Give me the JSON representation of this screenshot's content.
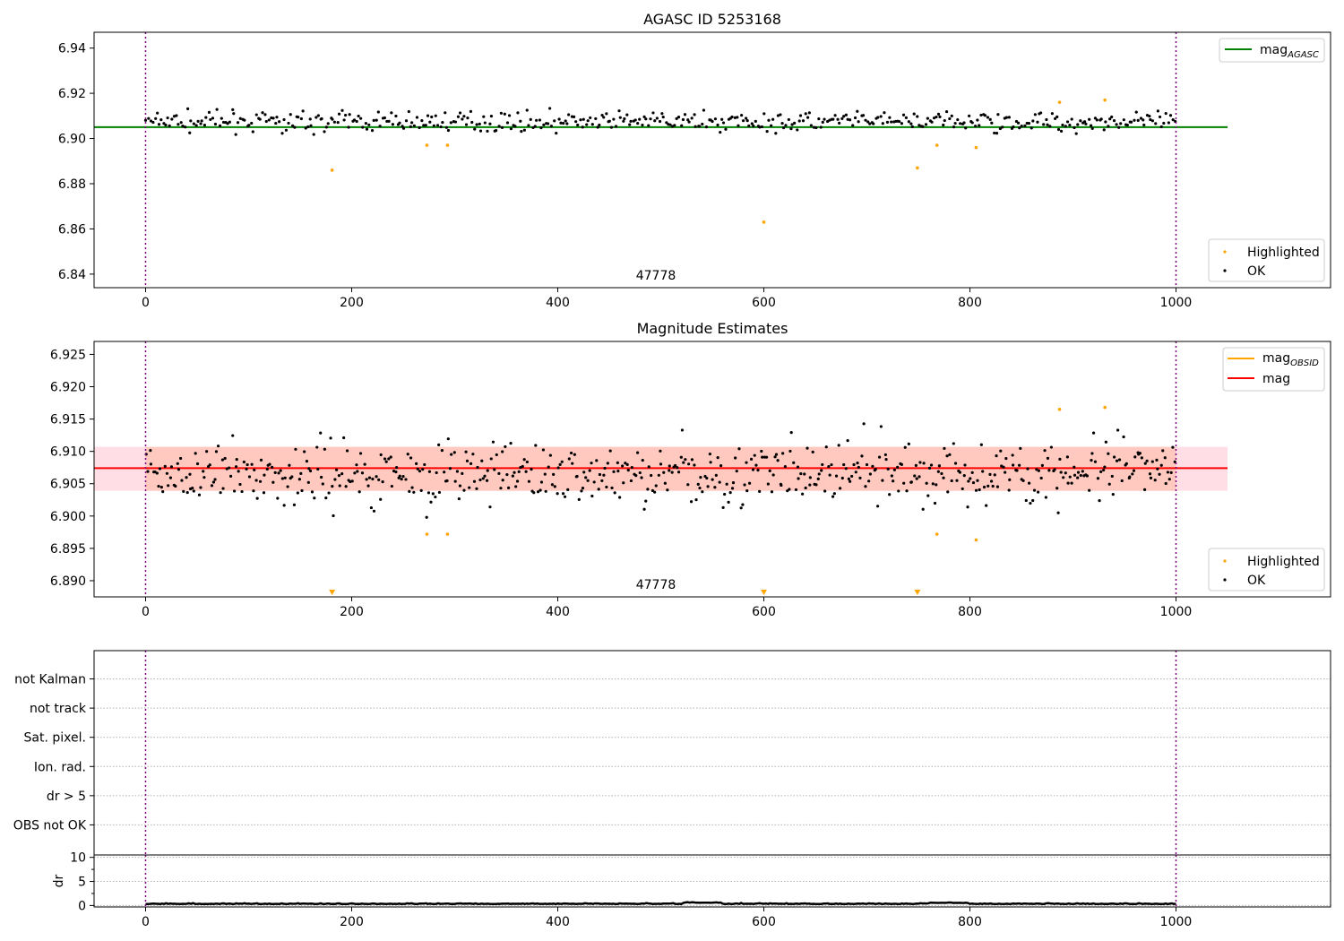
{
  "chart_data": [
    {
      "type": "scatter",
      "title": "AGASC ID 5253168",
      "xlim": [
        -50,
        1150
      ],
      "ylim": [
        6.834,
        6.947
      ],
      "xticks": [
        0,
        200,
        400,
        600,
        800,
        1000
      ],
      "xtick_labels": [
        "0",
        "200",
        "400",
        "600",
        "800",
        "1000"
      ],
      "yticks": [
        6.84,
        6.86,
        6.88,
        6.9,
        6.92,
        6.94
      ],
      "ytick_labels": [
        "6.84",
        "6.86",
        "6.88",
        "6.90",
        "6.92",
        "6.94"
      ],
      "obsid_bounds": [
        0,
        1000
      ],
      "obsid_label": "47778",
      "line": {
        "name": "mag",
        "sub": "AGASC",
        "y": 6.905,
        "x": [
          -50,
          1050
        ],
        "color": "#008000"
      },
      "series_ok": {
        "name": "OK",
        "color": "#000000",
        "center": 6.9075,
        "spread": 0.003,
        "count": 480
      },
      "series_highlighted": {
        "name": "Highlighted",
        "color": "#ffa500",
        "x": [
          181,
          273,
          293,
          600,
          749,
          768,
          806,
          887,
          931
        ],
        "y": [
          6.886,
          6.897,
          6.897,
          6.863,
          6.887,
          6.897,
          6.896,
          6.916,
          6.917
        ]
      },
      "legend": "upper-right / lower-right"
    },
    {
      "type": "scatter",
      "title": "Magnitude Estimates",
      "xlim": [
        -50,
        1150
      ],
      "ylim": [
        6.8875,
        6.927
      ],
      "xticks": [
        0,
        200,
        400,
        600,
        800,
        1000
      ],
      "xtick_labels": [
        "0",
        "200",
        "400",
        "600",
        "800",
        "1000"
      ],
      "yticks": [
        6.89,
        6.895,
        6.9,
        6.905,
        6.91,
        6.915,
        6.92,
        6.925
      ],
      "ytick_labels": [
        "6.890",
        "6.895",
        "6.900",
        "6.905",
        "6.910",
        "6.915",
        "6.920",
        "6.925"
      ],
      "obsid_bounds": [
        0,
        1000
      ],
      "obsid_label": "47778",
      "line_obsid": {
        "name": "mag",
        "sub": "OBSID",
        "color": "#ffa500"
      },
      "line_mag": {
        "name": "mag",
        "y": 6.9074,
        "x": [
          -50,
          1050
        ],
        "color": "#ff0000"
      },
      "band_mag": {
        "y1": 6.9039,
        "y2": 6.9107,
        "x": [
          -50,
          1050
        ],
        "color": "#ffc0cb"
      },
      "band_obsid": {
        "y1": 6.9039,
        "y2": 6.9107,
        "x": [
          0,
          1000
        ],
        "color": "#ffa07a"
      },
      "series_ok": {
        "name": "OK",
        "color": "#000000",
        "center": 6.9065,
        "spread": 0.0035,
        "count": 600
      },
      "series_highlighted": {
        "name": "Highlighted",
        "color": "#ffa500",
        "x": [
          273,
          293,
          768,
          806,
          887,
          931
        ],
        "y": [
          6.8972,
          6.8972,
          6.8972,
          6.8963,
          6.9165,
          6.9168
        ]
      },
      "offscale_markers": {
        "x": [
          181,
          600,
          749
        ],
        "color": "#ffa500"
      },
      "legend": "upper-right / lower-right"
    },
    {
      "type": "table",
      "xlim": [
        -50,
        1150
      ],
      "flag_labels": [
        "not Kalman",
        "not track",
        "Sat. pixel.",
        "Ion. rad.",
        "dr > 5",
        "OBS not OK"
      ],
      "obsid_bounds": [
        0,
        1000
      ]
    },
    {
      "type": "line",
      "ylabel": "dr",
      "xlim": [
        -50,
        1150
      ],
      "ylim": [
        -0.3,
        10.5
      ],
      "xticks": [
        0,
        200,
        400,
        600,
        800,
        1000
      ],
      "xtick_labels": [
        "0",
        "200",
        "400",
        "600",
        "800",
        "1000"
      ],
      "yticks": [
        0,
        5,
        10
      ],
      "ytick_labels": [
        "0",
        "5",
        "10"
      ],
      "series": {
        "name": "dr",
        "color": "#000000",
        "level": 0.3
      }
    }
  ]
}
